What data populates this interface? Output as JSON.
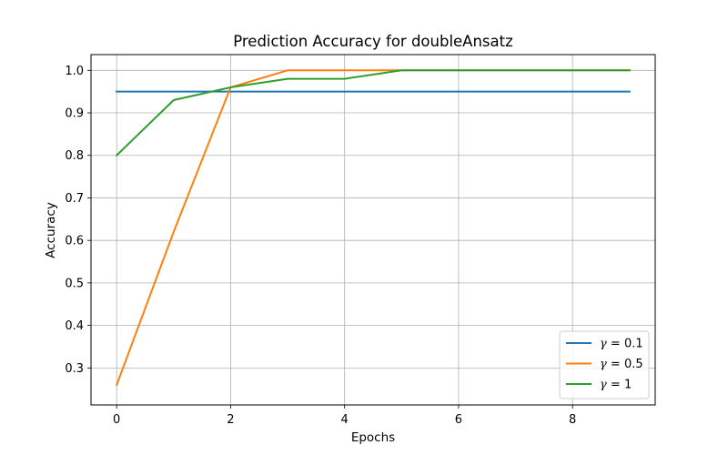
{
  "chart_data": {
    "type": "line",
    "title": "Prediction Accuracy for doubleAnsatz",
    "xlabel": "Epochs",
    "ylabel": "Accuracy",
    "x": [
      0,
      1,
      2,
      3,
      4,
      5,
      6,
      7,
      8,
      9
    ],
    "xlim": [
      -0.45,
      9.45
    ],
    "ylim": [
      0.213,
      1.037
    ],
    "xticks": [
      0,
      2,
      4,
      6,
      8
    ],
    "yticks": [
      0.3,
      0.4,
      0.5,
      0.6,
      0.7,
      0.8,
      0.9,
      1.0
    ],
    "xtick_labels": [
      "0",
      "2",
      "4",
      "6",
      "8"
    ],
    "ytick_labels": [
      "0.3",
      "0.4",
      "0.5",
      "0.6",
      "0.7",
      "0.8",
      "0.9",
      "1.0"
    ],
    "grid": true,
    "legend_position": "lower-right",
    "series": [
      {
        "name": "γ = 0.1",
        "gamma_value": "0.1",
        "color": "#1f77b4",
        "values": [
          0.95,
          0.95,
          0.95,
          0.95,
          0.95,
          0.95,
          0.95,
          0.95,
          0.95,
          0.95
        ]
      },
      {
        "name": "γ = 0.5",
        "gamma_value": "0.5",
        "color": "#ff7f0e",
        "values": [
          0.26,
          0.62,
          0.96,
          1.0,
          1.0,
          1.0,
          1.0,
          1.0,
          1.0,
          1.0
        ]
      },
      {
        "name": "γ = 1",
        "gamma_value": "1",
        "color": "#2ca02c",
        "values": [
          0.8,
          0.93,
          0.96,
          0.98,
          0.98,
          1.0,
          1.0,
          1.0,
          1.0,
          1.0
        ]
      }
    ]
  }
}
